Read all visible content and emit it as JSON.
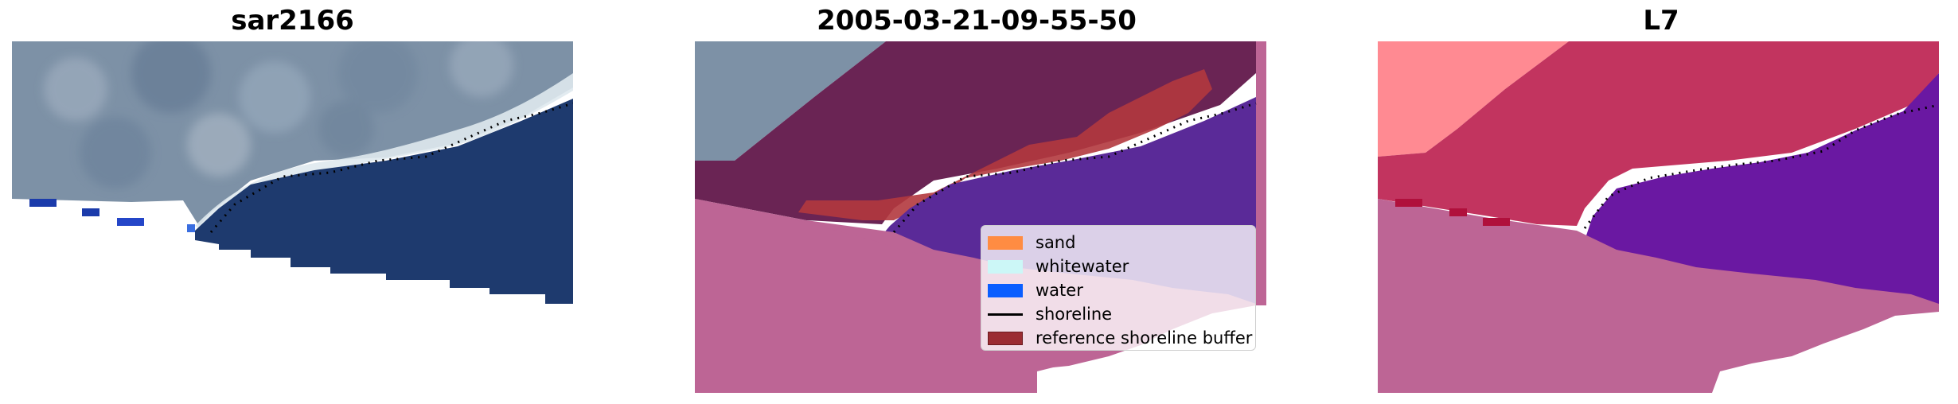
{
  "panels": [
    {
      "title": "sar2166"
    },
    {
      "title": "2005-03-21-09-55-50"
    },
    {
      "title": "L7"
    }
  ],
  "legend": {
    "items": [
      {
        "label": "sand",
        "color": "#ff8c42",
        "kind": "patch"
      },
      {
        "label": "whitewater",
        "color": "#ccf7f7",
        "kind": "patch"
      },
      {
        "label": "water",
        "color": "#0a5eff",
        "kind": "patch"
      },
      {
        "label": "shoreline",
        "color": "#000000",
        "kind": "line"
      },
      {
        "label": "reference shoreline buffer",
        "color": "#9b2c33",
        "kind": "patch"
      }
    ]
  },
  "colors": {
    "sea_deep": "#1e3a6e",
    "land_overlay": "#bd6595",
    "sand_overlay": "#6a2454",
    "water_overlay": "#5a2a98",
    "buffer": "#b2383e",
    "l7_land": "#c2345f",
    "l7_water": "#6a18a2",
    "l7_pink": "#ff8a92"
  }
}
